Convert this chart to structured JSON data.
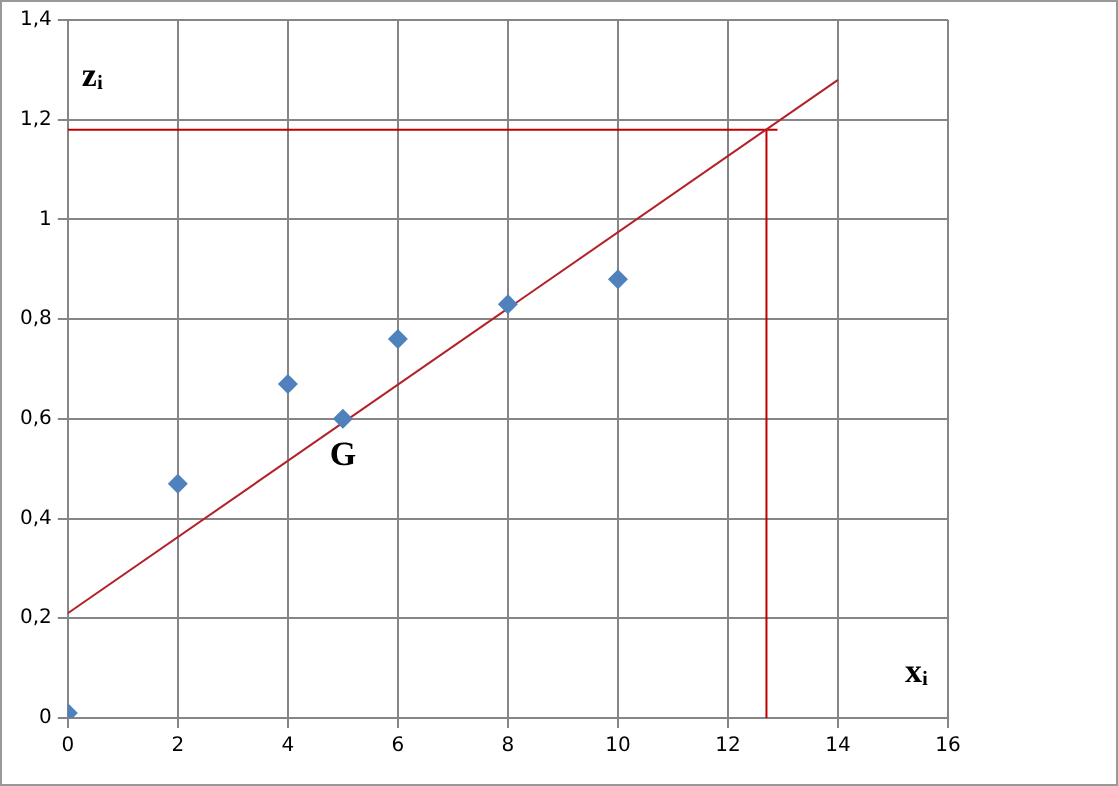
{
  "chart_data": {
    "type": "scatter",
    "xlabel": "xᵢ",
    "ylabel": "zᵢ",
    "xlim": [
      0,
      16
    ],
    "xticks": [
      0,
      2,
      4,
      6,
      8,
      10,
      12,
      14,
      16
    ],
    "ylim": [
      0,
      1.4
    ],
    "yticks": [
      0,
      {
        "value": 0.2,
        "label": "0,2"
      },
      {
        "value": 0.4,
        "label": "0,4"
      },
      {
        "value": 0.6,
        "label": "0,6"
      },
      {
        "value": 0.8,
        "label": "0,8"
      },
      1,
      {
        "value": 1.2,
        "label": "1,2"
      },
      {
        "value": 1.4,
        "label": "1,4"
      }
    ],
    "grid": true,
    "legend": false,
    "series": [
      {
        "type": "scatter",
        "color": "#4f81bd",
        "marker": "diamond",
        "x": [
          0,
          2,
          4,
          5,
          6,
          8,
          10
        ],
        "values": [
          0.01,
          0.47,
          0.67,
          0.6,
          0.76,
          0.83,
          0.88
        ]
      },
      {
        "type": "line",
        "color": "#b3202a",
        "marker": "none",
        "x": [
          0,
          14
        ],
        "values": [
          0.21,
          1.28
        ]
      },
      {
        "type": "line",
        "color": "#c00000",
        "marker": "none",
        "x": [
          0,
          12.9
        ],
        "values": [
          1.18,
          1.18
        ]
      },
      {
        "type": "line",
        "color": "#c00000",
        "marker": "none",
        "x": [
          12.7,
          12.7
        ],
        "values": [
          0,
          1.18
        ]
      }
    ],
    "annotations": [
      {
        "text": "G",
        "x": 5,
        "y": 0.6
      }
    ]
  }
}
